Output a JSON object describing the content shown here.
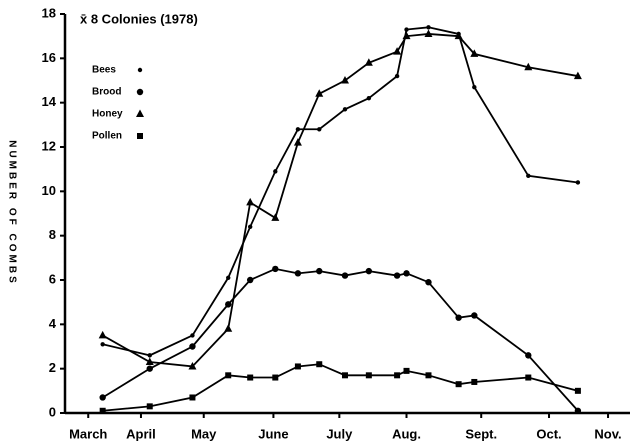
{
  "chart_data": {
    "type": "line",
    "title": "x̄ 8 Colonies (1978)",
    "y_label": "NUMBER OF COMBS",
    "x": [
      0.6,
      1.35,
      2.03,
      2.6,
      2.95,
      3.35,
      3.71,
      4.05,
      4.46,
      4.84,
      5.29,
      5.44,
      5.79,
      6.27,
      6.52,
      7.38,
      8.17
    ],
    "series": [
      {
        "name": "Bees",
        "color": "#000000",
        "marker": "dot",
        "values": [
          3.1,
          2.6,
          3.5,
          6.1,
          8.4,
          10.9,
          12.8,
          12.8,
          13.7,
          14.2,
          15.2,
          17.3,
          17.4,
          17.1,
          14.7,
          10.7,
          10.4
        ]
      },
      {
        "name": "Brood",
        "color": "#000000",
        "marker": "circle",
        "values": [
          0.7,
          2.0,
          3.0,
          4.9,
          6.0,
          6.5,
          6.3,
          6.4,
          6.2,
          6.4,
          6.2,
          6.3,
          5.9,
          4.3,
          4.4,
          2.6,
          0.1
        ]
      },
      {
        "name": "Honey",
        "color": "#000000",
        "marker": "triangle",
        "values": [
          3.5,
          2.3,
          2.1,
          3.8,
          9.5,
          8.8,
          12.2,
          14.4,
          15.0,
          15.8,
          16.3,
          17.0,
          17.1,
          17.0,
          16.2,
          15.6,
          15.2
        ]
      },
      {
        "name": "Pollen",
        "color": "#000000",
        "marker": "square",
        "values": [
          0.1,
          0.3,
          0.7,
          1.7,
          1.6,
          1.6,
          2.1,
          2.2,
          1.7,
          1.7,
          1.7,
          1.9,
          1.7,
          1.3,
          1.4,
          1.6,
          1.0
        ]
      }
    ],
    "xlim": [
      0,
      9
    ],
    "xticks": [
      {
        "value": 0.37,
        "label": "March"
      },
      {
        "value": 1.21,
        "label": "April"
      },
      {
        "value": 2.21,
        "label": "May"
      },
      {
        "value": 3.32,
        "label": "June"
      },
      {
        "value": 4.37,
        "label": "July"
      },
      {
        "value": 5.44,
        "label": "Aug."
      },
      {
        "value": 6.63,
        "label": "Sept."
      },
      {
        "value": 7.71,
        "label": "Oct."
      },
      {
        "value": 8.65,
        "label": "Nov."
      }
    ],
    "ylim": [
      0,
      18
    ],
    "yticks": [
      0,
      2,
      4,
      6,
      8,
      10,
      12,
      14,
      16,
      18
    ],
    "grid": false,
    "legend": "upper left"
  }
}
